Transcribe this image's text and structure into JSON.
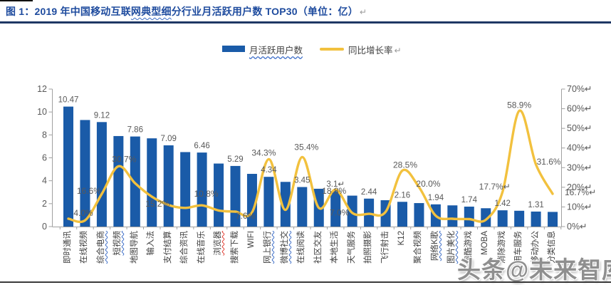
{
  "title": {
    "pre": "图 1：2019 年中国移动互联",
    "wavy": "网典型细",
    "post": "分行业月活跃用户数 TOP30（单位：亿）",
    "return_mark": "↵"
  },
  "legend": {
    "bar_label": "月活跃用户数",
    "line_label": "同比增长率",
    "return_mark": "↵"
  },
  "watermark": "头条@未来智库",
  "colors": {
    "bar": "#1A5BA8",
    "line": "#F2C13E",
    "title_text": "#1E4B9E",
    "title_rule": "#1F3864",
    "data_label": "#595959",
    "axis": "#a0a0a0",
    "squiggle_blue": "#3b6cc7",
    "squiggle_red": "#e03c31"
  },
  "chart_data": {
    "type": "bar+line",
    "title": "2019 年中国移动互联网典型细分行业月活跃用户数 TOP30（单位：亿）",
    "categories": [
      "即时通讯",
      "在线视频",
      "综合电商",
      "短视频",
      "地图导航",
      "输入法",
      "支付结算",
      "综合资讯",
      "在线音乐",
      "浏览器",
      "搜索下载",
      "WIFI",
      "网上银行",
      "微博社交",
      "在线阅读",
      "社区交友",
      "本地生活",
      "天气服务",
      "拍照摄影",
      "飞行射击",
      "K12",
      "聚合视频",
      "网络K歌",
      "图片美化",
      "跑酷游戏",
      "MOBA",
      "消除游戏",
      "用车服务",
      "移动办公",
      "分类信息"
    ],
    "left_axis": {
      "min": 0,
      "max": 12,
      "step": 2,
      "tick_labels": [
        "0",
        "2",
        "4",
        "6",
        "8",
        "10",
        "12"
      ]
    },
    "right_axis": {
      "min": 0,
      "max": 70,
      "step": 10,
      "tick_labels": [
        "0%↵",
        "10%↵",
        "20%↵",
        "30%↵",
        "40%↵",
        "50%↵",
        "60%↵",
        "70%↵"
      ]
    },
    "grid": false,
    "legend_position": "top",
    "series": [
      {
        "name": "月活跃用户数",
        "kind": "bar",
        "axis": "left",
        "values": [
          10.47,
          9.3,
          9.12,
          7.9,
          7.86,
          7.7,
          7.09,
          6.5,
          6.46,
          5.5,
          5.29,
          4.6,
          4.34,
          3.9,
          3.45,
          3.3,
          3.1,
          2.7,
          2.44,
          2.3,
          2.16,
          2.05,
          1.94,
          1.85,
          1.74,
          1.6,
          1.42,
          1.38,
          1.31,
          1.28
        ],
        "value_labels": [
          {
            "index": 0,
            "text": "10.47"
          },
          {
            "index": 2,
            "text": "9.12"
          },
          {
            "index": 4,
            "text": "7.86"
          },
          {
            "index": 6,
            "text": "7.09"
          },
          {
            "index": 8,
            "text": "6.46"
          },
          {
            "index": 10,
            "text": "5.29"
          },
          {
            "index": 12,
            "text": "4.34"
          },
          {
            "index": 14,
            "text": "3.45"
          },
          {
            "index": 16,
            "text": "3.1↵"
          },
          {
            "index": 18,
            "text": "2.44"
          },
          {
            "index": 20,
            "text": "2.16"
          },
          {
            "index": 22,
            "text": "1.94"
          },
          {
            "index": 24,
            "text": "1.74"
          },
          {
            "index": 26,
            "text": "1.42"
          },
          {
            "index": 28,
            "text": "1.31"
          }
        ]
      },
      {
        "name": "同比增长率",
        "kind": "line",
        "axis": "right",
        "values_pct": [
          4.0,
          3.2,
          16.6,
          30.7,
          22,
          15.2,
          11,
          9.5,
          10.8,
          8.2,
          7.6,
          7.2,
          34.3,
          8.5,
          35.4,
          9.5,
          18.8,
          7.0,
          6.5,
          7.5,
          28.5,
          20.0,
          5.5,
          4.0,
          3.8,
          3.5,
          17.7,
          58.9,
          31.6,
          16.7
        ],
        "point_labels": [
          {
            "index": 0,
            "text": "4.0%",
            "dx": 21,
            "dy": -8
          },
          {
            "index": 2,
            "text": "16.6%",
            "dx": -18,
            "dy": -4
          },
          {
            "index": 3,
            "text": "30.7%",
            "dx": 8,
            "dy": -10
          },
          {
            "index": 5,
            "text": "15.2%",
            "dx": 8,
            "dy": 10
          },
          {
            "index": 8,
            "text": "10.8%",
            "dx": 6,
            "dy": -16
          },
          {
            "index": 10,
            "text": "7.6%",
            "dx": 14,
            "dy": 6
          },
          {
            "index": 12,
            "text": "34.3%",
            "dx": -7,
            "dy": -9
          },
          {
            "index": 14,
            "text": "35.4%",
            "dx": 6,
            "dy": -14
          },
          {
            "index": 16,
            "text": "18.8%",
            "dx": -2,
            "dy": 2
          },
          {
            "index": 17,
            "text": "7.0%",
            "dx": -18,
            "dy": 0
          },
          {
            "index": 20,
            "text": "28.5%",
            "dx": 4,
            "dy": -8
          },
          {
            "index": 21,
            "text": "20.0%",
            "dx": 13,
            "dy": -5
          },
          {
            "index": 26,
            "text": "17.7%↵",
            "dx": -11,
            "dy": -7
          },
          {
            "index": 27,
            "text": "58.9%",
            "dx": 0,
            "dy": -8
          },
          {
            "index": 28,
            "text": "31.6%",
            "dx": 18,
            "dy": -4
          },
          {
            "index": 29,
            "text": "16.7%↵",
            "dx": 39,
            "dy": -2
          }
        ]
      }
    ],
    "spellcheck_marks": [
      {
        "index": 2,
        "color": "blue"
      },
      {
        "index": 3,
        "color": "blue"
      },
      {
        "index": 9,
        "color": "red"
      },
      {
        "index": 12,
        "color": "blue"
      },
      {
        "index": 13,
        "color": "blue"
      },
      {
        "index": 22,
        "color": "blue"
      },
      {
        "index": 23,
        "color": "blue"
      }
    ]
  }
}
